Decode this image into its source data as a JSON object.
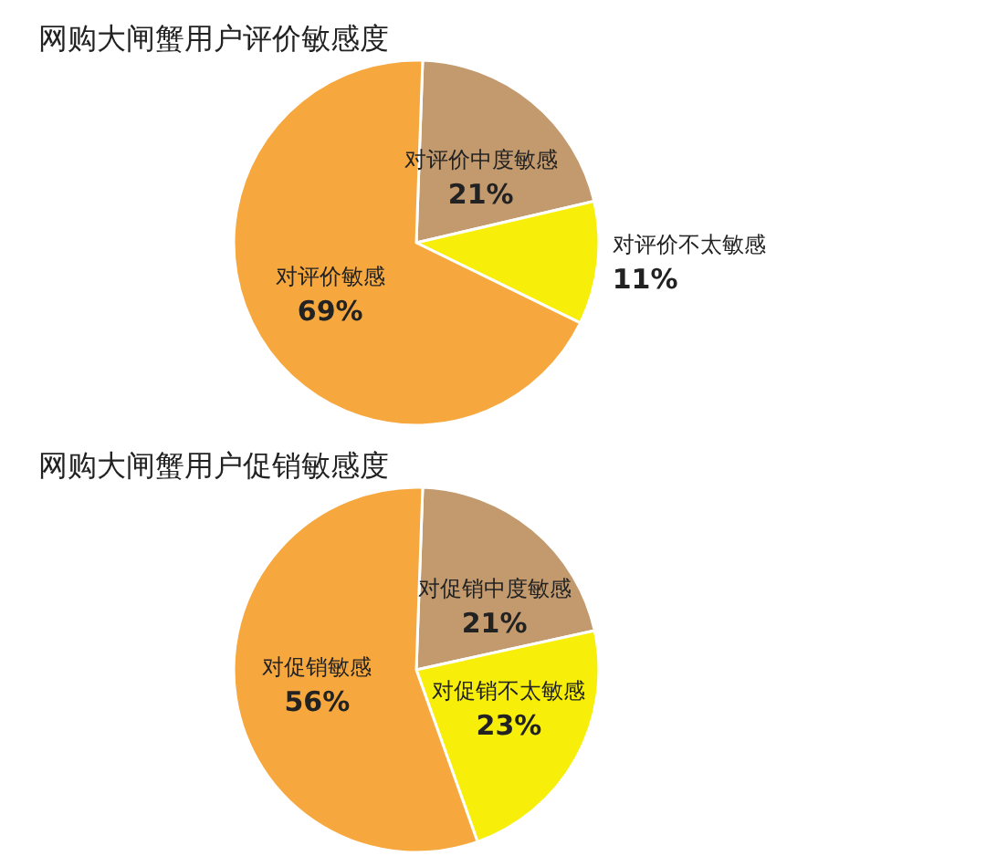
{
  "chart_data": [
    {
      "type": "pie",
      "title": "网购大闸蟹用户评价敏感度",
      "categories": [
        "对评价中度敏感",
        "对评价不太敏感",
        "对评价敏感"
      ],
      "values": [
        21,
        11,
        69
      ],
      "value_labels": [
        "21%",
        "11%",
        "69%"
      ],
      "colors": [
        "#c29a6e",
        "#f7ef0a",
        "#f6a83e"
      ],
      "legend": false
    },
    {
      "type": "pie",
      "title": "网购大闸蟹用户促销敏感度",
      "categories": [
        "对促销中度敏感",
        "对促销不太敏感",
        "对促销敏感"
      ],
      "values": [
        21,
        23,
        56
      ],
      "value_labels": [
        "21%",
        "23%",
        "56%"
      ],
      "colors": [
        "#c29a6e",
        "#f7ef0a",
        "#f6a83e"
      ],
      "legend": false
    }
  ]
}
